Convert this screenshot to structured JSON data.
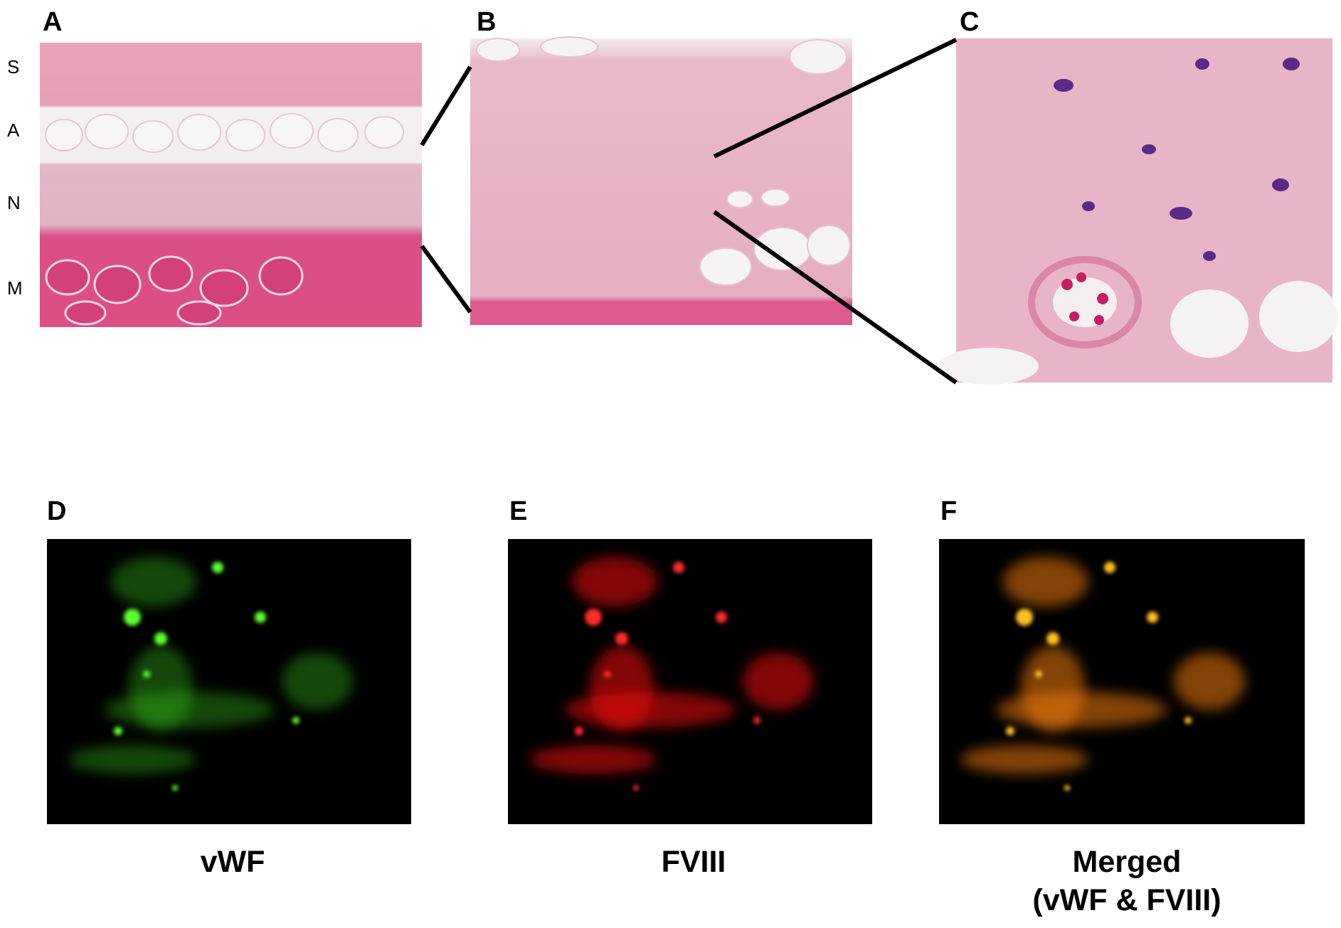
{
  "figure": {
    "panels": [
      {
        "label": "A"
      },
      {
        "label": "B"
      },
      {
        "label": "C"
      },
      {
        "label": "D",
        "caption": [
          "vWF"
        ]
      },
      {
        "label": "E",
        "caption": [
          "FVIII"
        ]
      },
      {
        "label": "F",
        "caption": [
          "Merged",
          "(vWF & FVIII)"
        ]
      }
    ],
    "layers": [
      "S",
      "A",
      "N",
      "M"
    ]
  }
}
